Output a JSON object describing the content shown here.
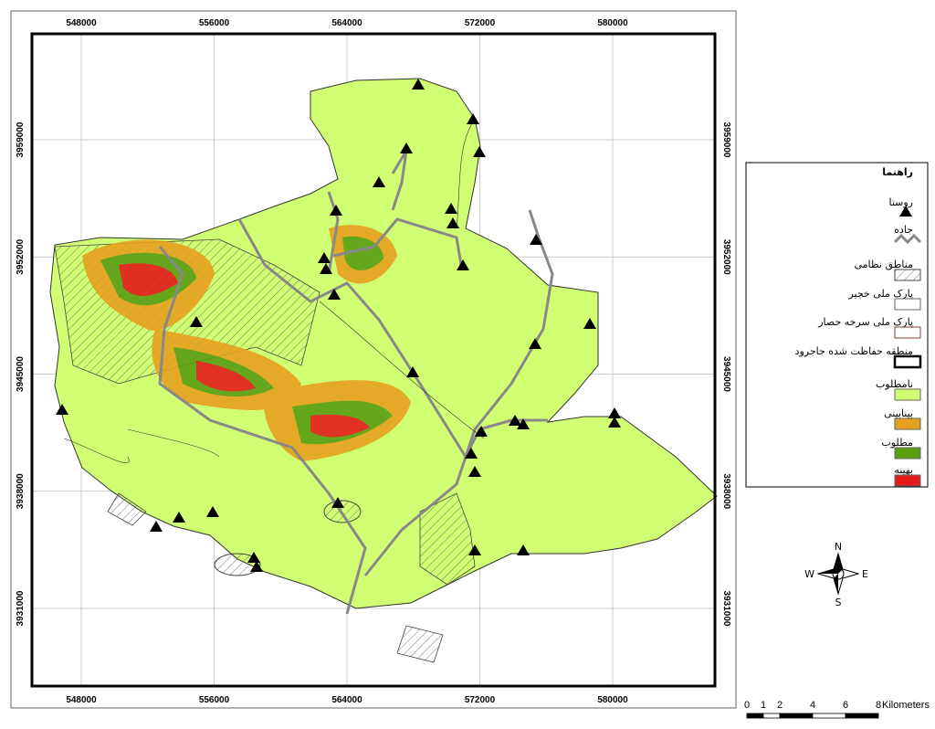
{
  "map": {
    "x_coords": [
      548000,
      556000,
      564000,
      572000,
      580000
    ],
    "y_coords": [
      3959000,
      3952000,
      3945000,
      3938000,
      3931000
    ]
  },
  "legend": {
    "title": "راهنما",
    "items": [
      "روستا",
      "جاده",
      "مناطق نظامی",
      "پارک ملی خجیر",
      "پارک ملی سرخه حصار",
      "منطقه حفاظت شده جاجرود",
      "نامطلوب",
      "بینابینی",
      "مطلوب",
      "بهینه"
    ]
  },
  "compass": {
    "north": "N",
    "east": "E",
    "south": "S",
    "west": "W"
  },
  "scale_bar": {
    "ticks": [
      0,
      1,
      2,
      4,
      6,
      8
    ],
    "unit": "Kilometers"
  }
}
